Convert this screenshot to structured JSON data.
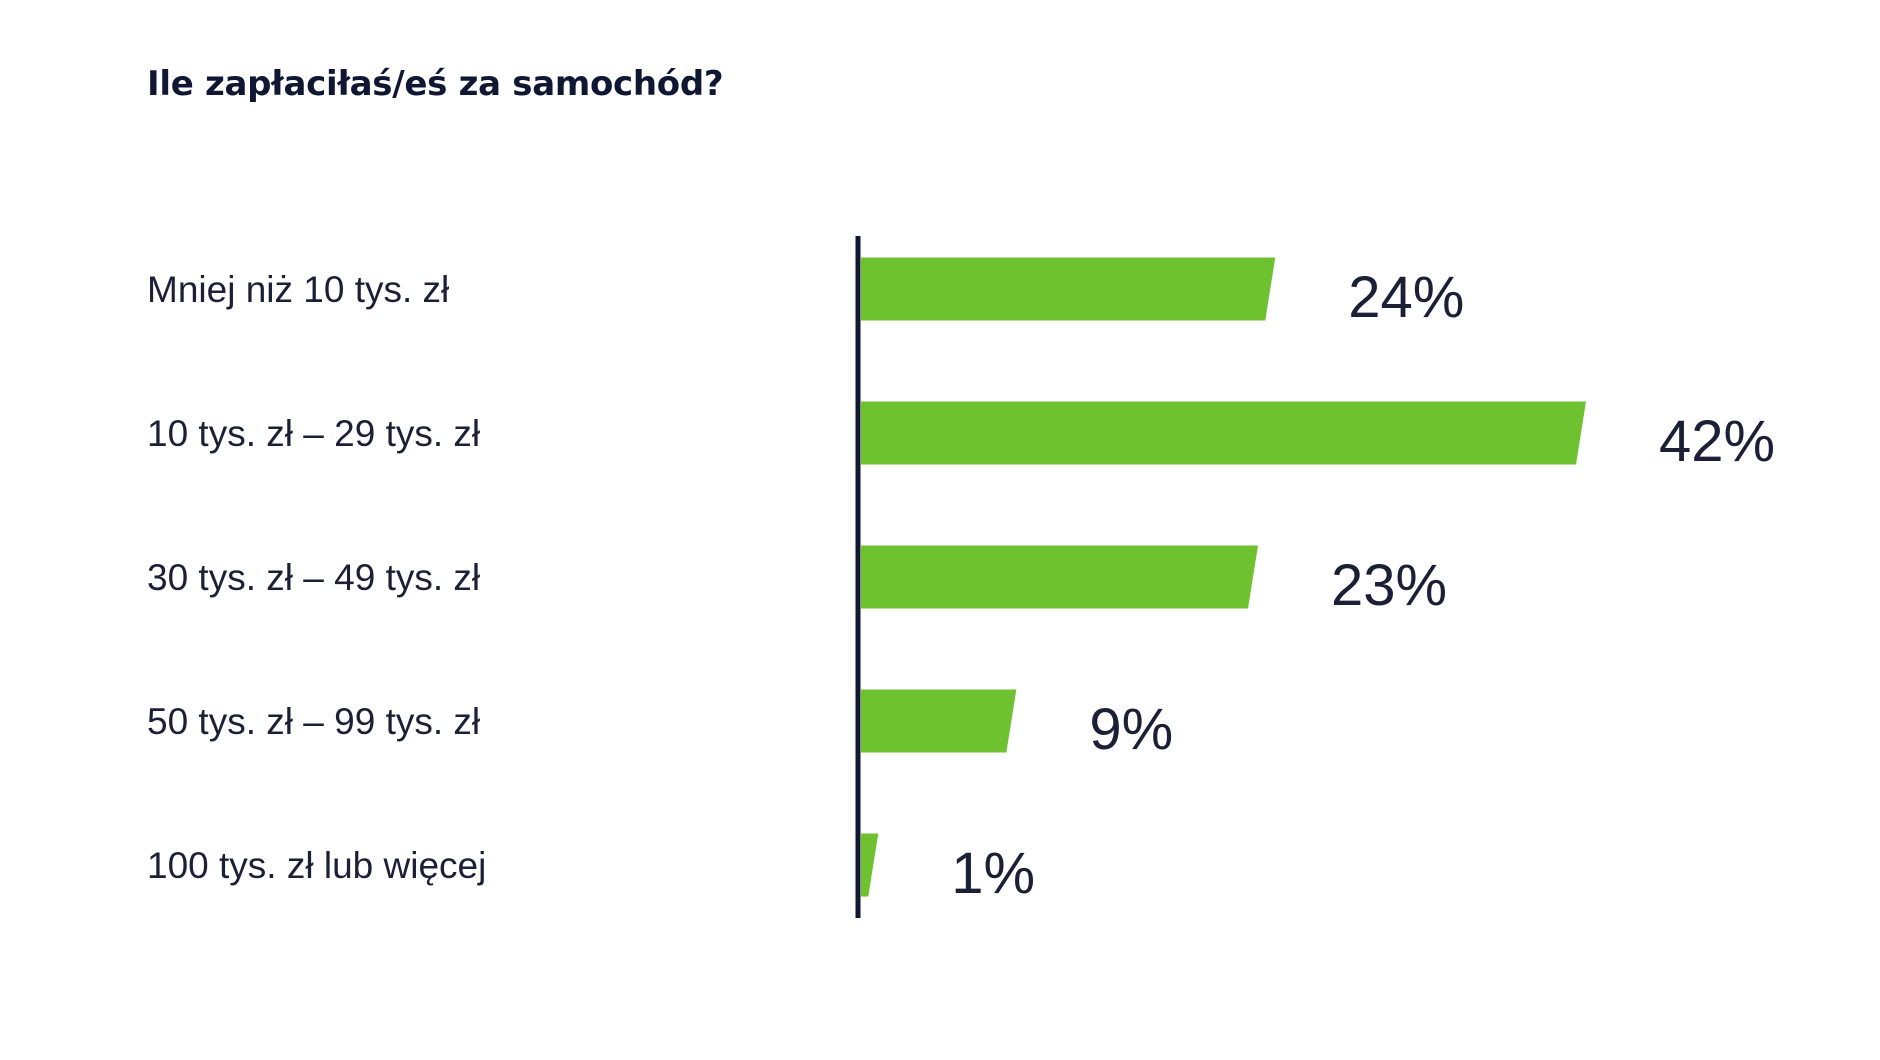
{
  "chart_data": {
    "type": "bar",
    "orientation": "horizontal",
    "title": "Ile zapłaciłaś/eś za samochód?",
    "categories": [
      "Mniej niż 10 tys. zł",
      "10 tys. zł – 29 tys. zł",
      "30 tys. zł – 49 tys. zł",
      "50 tys. zł – 99 tys. zł",
      "100 tys. zł lub więcej"
    ],
    "values": [
      24,
      42,
      23,
      9,
      1
    ],
    "value_labels": [
      "24%",
      "42%",
      "23%",
      "9%",
      "1%"
    ],
    "unit": "%",
    "xlim": [
      0,
      42
    ],
    "grid": false,
    "legend": "none",
    "bar_color": "#6fc22f",
    "axis_color": "#0f1733",
    "text_color": "#1b2037"
  }
}
